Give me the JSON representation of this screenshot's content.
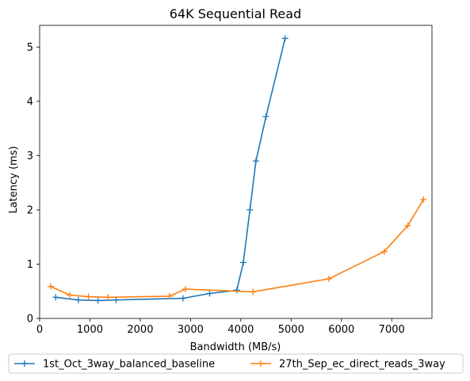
{
  "chart_data": {
    "type": "line",
    "title": "64K  Sequential Read",
    "xlabel": "Bandwidth (MB/s)",
    "ylabel": "Latency (ms)",
    "xlim": [
      0,
      7800
    ],
    "ylim": [
      0,
      5.4
    ],
    "xticks": [
      0,
      1000,
      2000,
      3000,
      4000,
      5000,
      6000,
      7000
    ],
    "yticks": [
      0,
      1,
      2,
      3,
      4,
      5
    ],
    "grid": false,
    "legend_position": "below",
    "marker": "plus",
    "series": [
      {
        "name": "1st_Oct_3way_balanced_baseline",
        "color": "#1f77b4",
        "x": [
          320,
          770,
          1160,
          1520,
          2850,
          3380,
          3920,
          4050,
          4180,
          4300,
          4500,
          4880
        ],
        "y": [
          0.39,
          0.34,
          0.33,
          0.34,
          0.37,
          0.46,
          0.52,
          1.03,
          2.0,
          2.9,
          3.72,
          5.16
        ]
      },
      {
        "name": "27th_Sep_ec_direct_reads_3way",
        "color": "#ff7f0e",
        "x": [
          220,
          600,
          970,
          1360,
          2580,
          2900,
          4240,
          5750,
          6850,
          7320,
          7630
        ],
        "y": [
          0.59,
          0.43,
          0.4,
          0.39,
          0.41,
          0.54,
          0.49,
          0.73,
          1.23,
          1.71,
          2.19
        ]
      }
    ]
  }
}
